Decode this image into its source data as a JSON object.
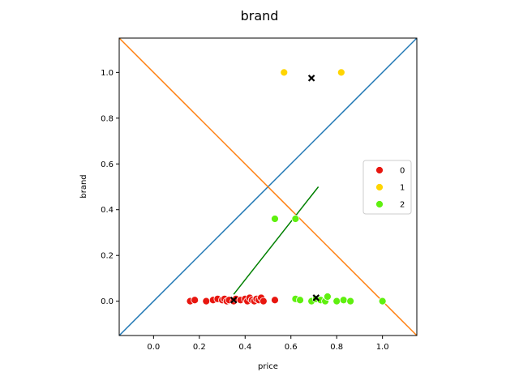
{
  "chart_data": {
    "type": "scatter",
    "title": "brand",
    "xlabel": "price",
    "ylabel": "brand",
    "xlim": [
      -0.15,
      1.15
    ],
    "ylim": [
      -0.15,
      1.15
    ],
    "xticks": [
      0.0,
      0.2,
      0.4,
      0.6,
      0.8,
      1.0
    ],
    "yticks": [
      0.0,
      0.2,
      0.4,
      0.6,
      0.8,
      1.0
    ],
    "tick_labels": {
      "x": [
        "0.0",
        "0.2",
        "0.4",
        "0.6",
        "0.8",
        "1.0"
      ],
      "y": [
        "0.0",
        "0.2",
        "0.4",
        "0.6",
        "0.8",
        "1.0"
      ]
    },
    "grid": false,
    "legend": {
      "placement": "center-right",
      "entries": [
        {
          "name": "0",
          "color": "#e8160f"
        },
        {
          "name": "1",
          "color": "#ffd500"
        },
        {
          "name": "2",
          "color": "#5ff00f"
        }
      ]
    },
    "series": [
      {
        "name": "0",
        "color": "#e8160f",
        "points": [
          [
            0.16,
            0.0
          ],
          [
            0.18,
            0.005
          ],
          [
            0.23,
            0.0
          ],
          [
            0.26,
            0.005
          ],
          [
            0.28,
            0.01
          ],
          [
            0.3,
            0.005
          ],
          [
            0.31,
            0.01
          ],
          [
            0.32,
            0.0
          ],
          [
            0.33,
            0.005
          ],
          [
            0.35,
            0.0
          ],
          [
            0.36,
            0.01
          ],
          [
            0.38,
            0.005
          ],
          [
            0.4,
            0.01
          ],
          [
            0.41,
            0.0
          ],
          [
            0.42,
            0.015
          ],
          [
            0.43,
            0.005
          ],
          [
            0.44,
            0.0
          ],
          [
            0.45,
            0.01
          ],
          [
            0.46,
            0.005
          ],
          [
            0.47,
            0.015
          ],
          [
            0.48,
            0.0
          ],
          [
            0.53,
            0.005
          ]
        ]
      },
      {
        "name": "1",
        "color": "#ffd500",
        "points": [
          [
            0.57,
            1.0
          ],
          [
            0.82,
            1.0
          ]
        ]
      },
      {
        "name": "2",
        "color": "#5ff00f",
        "points": [
          [
            0.53,
            0.36
          ],
          [
            0.62,
            0.36
          ],
          [
            0.62,
            0.01
          ],
          [
            0.64,
            0.005
          ],
          [
            0.69,
            0.0
          ],
          [
            0.71,
            0.01
          ],
          [
            0.73,
            0.005
          ],
          [
            0.75,
            0.0
          ],
          [
            0.76,
            0.02
          ],
          [
            0.8,
            0.0
          ],
          [
            0.83,
            0.005
          ],
          [
            0.86,
            0.0
          ],
          [
            1.0,
            0.0
          ]
        ]
      }
    ],
    "centroids": [
      [
        0.35,
        0.005
      ],
      [
        0.69,
        0.975
      ],
      [
        0.71,
        0.015
      ]
    ],
    "lines": [
      {
        "color": "#1f77b4",
        "from": [
          -0.15,
          -0.15
        ],
        "to": [
          1.15,
          1.15
        ]
      },
      {
        "color": "#ff7f0e",
        "from": [
          -0.15,
          1.15
        ],
        "to": [
          1.15,
          -0.15
        ]
      },
      {
        "color": "#008000",
        "from": [
          0.35,
          0.03
        ],
        "to": [
          0.72,
          0.5
        ]
      }
    ]
  }
}
